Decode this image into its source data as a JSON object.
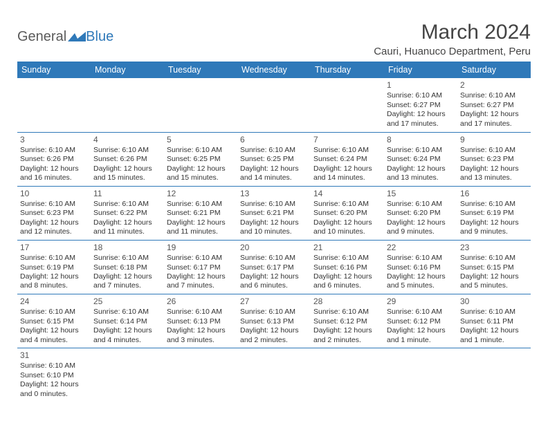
{
  "logo": {
    "part1": "General",
    "part2": "Blue"
  },
  "title": "March 2024",
  "location": "Cauri, Huanuco Department, Peru",
  "colors": {
    "header_bg": "#2f79b9",
    "header_fg": "#ffffff",
    "cell_border": "#2f79b9",
    "text": "#333333",
    "logo_gray": "#5a5a5a",
    "logo_blue": "#2f79b9"
  },
  "fonts": {
    "title_size": 30,
    "location_size": 15,
    "th_size": 12.5,
    "cell_size": 10.5,
    "daynum_size": 12
  },
  "weekdays": [
    "Sunday",
    "Monday",
    "Tuesday",
    "Wednesday",
    "Thursday",
    "Friday",
    "Saturday"
  ],
  "first_weekday_index": 5,
  "days": [
    {
      "n": 1,
      "sr": "6:10 AM",
      "ss": "6:27 PM",
      "dl": "12 hours and 17 minutes."
    },
    {
      "n": 2,
      "sr": "6:10 AM",
      "ss": "6:27 PM",
      "dl": "12 hours and 17 minutes."
    },
    {
      "n": 3,
      "sr": "6:10 AM",
      "ss": "6:26 PM",
      "dl": "12 hours and 16 minutes."
    },
    {
      "n": 4,
      "sr": "6:10 AM",
      "ss": "6:26 PM",
      "dl": "12 hours and 15 minutes."
    },
    {
      "n": 5,
      "sr": "6:10 AM",
      "ss": "6:25 PM",
      "dl": "12 hours and 15 minutes."
    },
    {
      "n": 6,
      "sr": "6:10 AM",
      "ss": "6:25 PM",
      "dl": "12 hours and 14 minutes."
    },
    {
      "n": 7,
      "sr": "6:10 AM",
      "ss": "6:24 PM",
      "dl": "12 hours and 14 minutes."
    },
    {
      "n": 8,
      "sr": "6:10 AM",
      "ss": "6:24 PM",
      "dl": "12 hours and 13 minutes."
    },
    {
      "n": 9,
      "sr": "6:10 AM",
      "ss": "6:23 PM",
      "dl": "12 hours and 13 minutes."
    },
    {
      "n": 10,
      "sr": "6:10 AM",
      "ss": "6:23 PM",
      "dl": "12 hours and 12 minutes."
    },
    {
      "n": 11,
      "sr": "6:10 AM",
      "ss": "6:22 PM",
      "dl": "12 hours and 11 minutes."
    },
    {
      "n": 12,
      "sr": "6:10 AM",
      "ss": "6:21 PM",
      "dl": "12 hours and 11 minutes."
    },
    {
      "n": 13,
      "sr": "6:10 AM",
      "ss": "6:21 PM",
      "dl": "12 hours and 10 minutes."
    },
    {
      "n": 14,
      "sr": "6:10 AM",
      "ss": "6:20 PM",
      "dl": "12 hours and 10 minutes."
    },
    {
      "n": 15,
      "sr": "6:10 AM",
      "ss": "6:20 PM",
      "dl": "12 hours and 9 minutes."
    },
    {
      "n": 16,
      "sr": "6:10 AM",
      "ss": "6:19 PM",
      "dl": "12 hours and 9 minutes."
    },
    {
      "n": 17,
      "sr": "6:10 AM",
      "ss": "6:19 PM",
      "dl": "12 hours and 8 minutes."
    },
    {
      "n": 18,
      "sr": "6:10 AM",
      "ss": "6:18 PM",
      "dl": "12 hours and 7 minutes."
    },
    {
      "n": 19,
      "sr": "6:10 AM",
      "ss": "6:17 PM",
      "dl": "12 hours and 7 minutes."
    },
    {
      "n": 20,
      "sr": "6:10 AM",
      "ss": "6:17 PM",
      "dl": "12 hours and 6 minutes."
    },
    {
      "n": 21,
      "sr": "6:10 AM",
      "ss": "6:16 PM",
      "dl": "12 hours and 6 minutes."
    },
    {
      "n": 22,
      "sr": "6:10 AM",
      "ss": "6:16 PM",
      "dl": "12 hours and 5 minutes."
    },
    {
      "n": 23,
      "sr": "6:10 AM",
      "ss": "6:15 PM",
      "dl": "12 hours and 5 minutes."
    },
    {
      "n": 24,
      "sr": "6:10 AM",
      "ss": "6:15 PM",
      "dl": "12 hours and 4 minutes."
    },
    {
      "n": 25,
      "sr": "6:10 AM",
      "ss": "6:14 PM",
      "dl": "12 hours and 4 minutes."
    },
    {
      "n": 26,
      "sr": "6:10 AM",
      "ss": "6:13 PM",
      "dl": "12 hours and 3 minutes."
    },
    {
      "n": 27,
      "sr": "6:10 AM",
      "ss": "6:13 PM",
      "dl": "12 hours and 2 minutes."
    },
    {
      "n": 28,
      "sr": "6:10 AM",
      "ss": "6:12 PM",
      "dl": "12 hours and 2 minutes."
    },
    {
      "n": 29,
      "sr": "6:10 AM",
      "ss": "6:12 PM",
      "dl": "12 hours and 1 minute."
    },
    {
      "n": 30,
      "sr": "6:10 AM",
      "ss": "6:11 PM",
      "dl": "12 hours and 1 minute."
    },
    {
      "n": 31,
      "sr": "6:10 AM",
      "ss": "6:10 PM",
      "dl": "12 hours and 0 minutes."
    }
  ],
  "labels": {
    "sunrise": "Sunrise:",
    "sunset": "Sunset:",
    "daylight": "Daylight:"
  }
}
